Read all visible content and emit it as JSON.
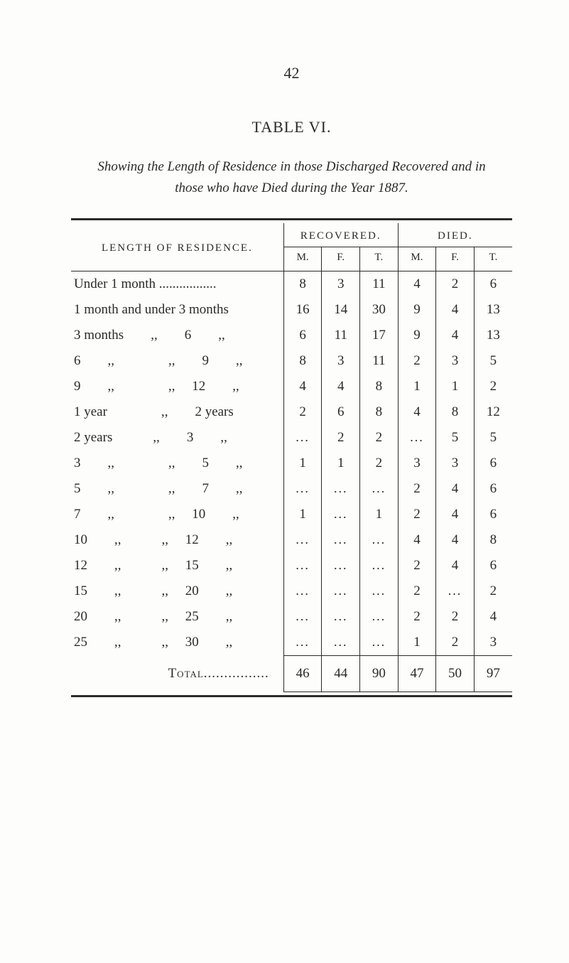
{
  "page_number": "42",
  "table_heading": "TABLE VI.",
  "subtitle": "Showing the Length of Residence in those Discharged Recovered and in those who have Died during the Year 1887.",
  "header": {
    "length_label": "LENGTH OF RESIDENCE.",
    "recovered": "RECOVERED.",
    "died": "DIED.",
    "m": "M.",
    "f": "F.",
    "t": "T.",
    "t2": "T."
  },
  "rows": [
    {
      "label": "Under 1 month .................",
      "rm": "8",
      "rf": "3",
      "rt": "11",
      "dm": "4",
      "df": "2",
      "dt": "6"
    },
    {
      "label": "1 month and under 3 months",
      "rm": "16",
      "rf": "14",
      "rt": "30",
      "dm": "9",
      "df": "4",
      "dt": "13"
    },
    {
      "label": "3 months  ,,  6  ,,",
      "rm": "6",
      "rf": "11",
      "rt": "17",
      "dm": "9",
      "df": "4",
      "dt": "13"
    },
    {
      "label": "6  ,,    ,,  9  ,,",
      "rm": "8",
      "rf": "3",
      "rt": "11",
      "dm": "2",
      "df": "3",
      "dt": "5"
    },
    {
      "label": "9  ,,    ,,  12  ,,",
      "rm": "4",
      "rf": "4",
      "rt": "8",
      "dm": "1",
      "df": "1",
      "dt": "2"
    },
    {
      "label": "1 year    ,,  2 years",
      "rm": "2",
      "rf": "6",
      "rt": "8",
      "dm": "4",
      "df": "8",
      "dt": "12"
    },
    {
      "label": "2 years   ,,  3  ,,",
      "rm": "...",
      "rf": "2",
      "rt": "2",
      "dm": "...",
      "df": "5",
      "dt": "5"
    },
    {
      "label": "3  ,,    ,,  5  ,,",
      "rm": "1",
      "rf": "1",
      "rt": "2",
      "dm": "3",
      "df": "3",
      "dt": "6"
    },
    {
      "label": "5  ,,    ,,  7  ,,",
      "rm": "...",
      "rf": "...",
      "rt": "...",
      "dm": "2",
      "df": "4",
      "dt": "6"
    },
    {
      "label": "7  ,,    ,,  10  ,,",
      "rm": "1",
      "rf": "...",
      "rt": "1",
      "dm": "2",
      "df": "4",
      "dt": "6"
    },
    {
      "label": "10  ,,   ,,  12  ,,",
      "rm": "...",
      "rf": "...",
      "rt": "...",
      "dm": "4",
      "df": "4",
      "dt": "8"
    },
    {
      "label": "12  ,,   ,,  15  ,,",
      "rm": "...",
      "rf": "...",
      "rt": "...",
      "dm": "2",
      "df": "4",
      "dt": "6"
    },
    {
      "label": "15  ,,   ,,  20  ,,",
      "rm": "...",
      "rf": "...",
      "rt": "...",
      "dm": "2",
      "df": "...",
      "dt": "2"
    },
    {
      "label": "20  ,,   ,,  25  ,,",
      "rm": "...",
      "rf": "...",
      "rt": "...",
      "dm": "2",
      "df": "2",
      "dt": "4"
    },
    {
      "label": "25  ,,   ,,  30  ,,",
      "rm": "...",
      "rf": "...",
      "rt": "...",
      "dm": "1",
      "df": "2",
      "dt": "3"
    }
  ],
  "total": {
    "label": "Total................",
    "rm": "46",
    "rf": "44",
    "rt": "90",
    "dm": "47",
    "df": "50",
    "dt": "97"
  },
  "colors": {
    "page_bg": "#fdfdfb",
    "text": "#2a2a2a",
    "rule": "#2a2a2a"
  }
}
